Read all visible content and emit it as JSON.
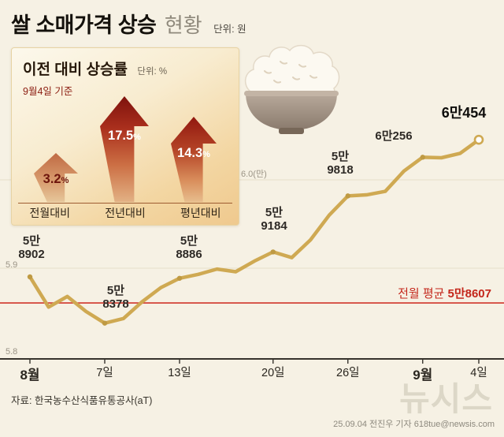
{
  "header": {
    "title_strong": "쌀 소매가격 상승",
    "title_light": "현황",
    "unit": "단위: 원"
  },
  "panel": {
    "title": "이전 대비 상승률",
    "unit": "단위: %",
    "as_of": "9월4일 기준",
    "percent_sign": "%",
    "bars": [
      {
        "value": "3.2",
        "caption": "전월대비"
      },
      {
        "value": "17.5",
        "caption": "전년대비"
      },
      {
        "value": "14.3",
        "caption": "평년대비"
      }
    ]
  },
  "chart_data": {
    "type": "line",
    "title": "쌀 소매가격 상승 현황",
    "unit": "원",
    "values": [
      58902,
      58560,
      58680,
      58510,
      58378,
      58430,
      58620,
      58780,
      58886,
      58930,
      58990,
      58960,
      59080,
      59184,
      59120,
      59320,
      59600,
      59818,
      59830,
      59870,
      60100,
      60256,
      60250,
      60300,
      60454
    ],
    "ylim": [
      57900,
      60700
    ],
    "yticks": [
      {
        "value": 58000,
        "label": "5.8",
        "grid": false
      },
      {
        "value": 59000,
        "label": "5.9",
        "grid": true
      },
      {
        "value": 60000,
        "label": "6.0(만)",
        "grid": true
      }
    ],
    "xticks": [
      {
        "index": 0,
        "label": "8월",
        "bold": true
      },
      {
        "index": 4,
        "label": "7일",
        "bold": false
      },
      {
        "index": 8,
        "label": "13일",
        "bold": false
      },
      {
        "index": 13,
        "label": "20일",
        "bold": false
      },
      {
        "index": 17,
        "label": "26일",
        "bold": false
      },
      {
        "index": 21,
        "label": "9월",
        "bold": true
      },
      {
        "index": 24,
        "label": "4일",
        "bold": false
      }
    ],
    "point_labels": [
      {
        "index": 0,
        "value": 58902,
        "line1": "5만",
        "line2": "8902",
        "final": false
      },
      {
        "index": 4,
        "value": 58378,
        "line1": "5만",
        "line2": "8378",
        "final": false
      },
      {
        "index": 8,
        "value": 58886,
        "line1": "5만",
        "line2": "8886",
        "final": false
      },
      {
        "index": 13,
        "value": 59184,
        "line1": "5만",
        "line2": "9184",
        "final": false
      },
      {
        "index": 17,
        "value": 59818,
        "line1": "5만",
        "line2": "9818",
        "final": false
      },
      {
        "index": 21,
        "value": 60256,
        "line1": "6만256",
        "line2": "",
        "final": false
      },
      {
        "index": 24,
        "value": 60454,
        "line1": "6만454",
        "line2": "",
        "final": true
      }
    ],
    "avg_line": {
      "value": 58607,
      "label_prefix": "전월 평균",
      "label_value": "5만8607"
    },
    "series_color": "#cfa952",
    "avg_color": "#d0352a",
    "legend_position": "none",
    "grid": true
  },
  "footer": {
    "source": "자료: 한국농수산식품유통공사(aT)",
    "credit": "25.09.04 전진우 기자 618tue@newsis.com",
    "watermark": "뉴시스"
  }
}
